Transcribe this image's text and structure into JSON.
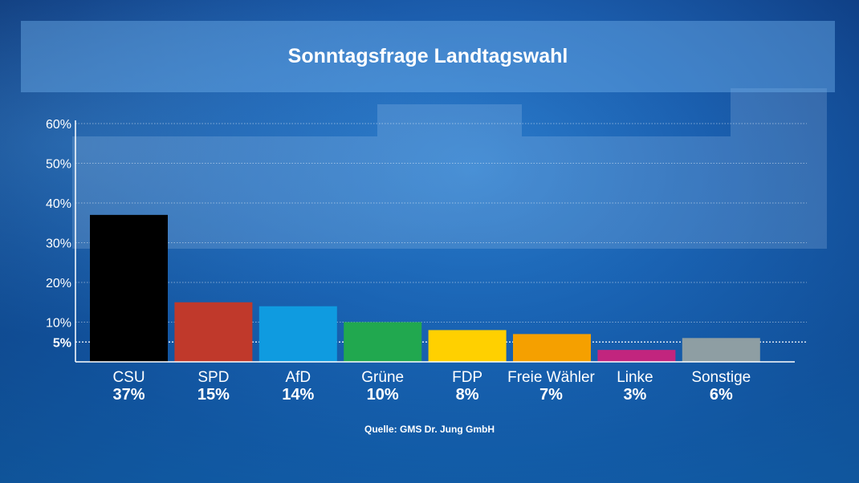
{
  "title": "Sonntagsfrage Landtagswahl",
  "source": "Quelle: GMS Dr. Jung GmbH",
  "chart_data": {
    "type": "bar",
    "title": "Sonntagsfrage Landtagswahl",
    "categories": [
      "CSU",
      "SPD",
      "AfD",
      "Grüne",
      "FDP",
      "Freie Wähler",
      "Linke",
      "Sonstige"
    ],
    "values": [
      37,
      15,
      14,
      10,
      8,
      7,
      3,
      6
    ],
    "value_labels": [
      "37%",
      "15%",
      "14%",
      "10%",
      "8%",
      "7%",
      "3%",
      "6%"
    ],
    "colors": [
      "#000000",
      "#c0392b",
      "#0f9be0",
      "#21a84f",
      "#ffd000",
      "#f5a000",
      "#c2257e",
      "#8e9ea3"
    ],
    "ylim": [
      0,
      60
    ],
    "yticks": [
      10,
      20,
      30,
      40,
      50,
      60
    ],
    "ytick_labels": [
      "10%",
      "20%",
      "30%",
      "40%",
      "50%",
      "60%"
    ],
    "threshold": 5,
    "threshold_label": "5%",
    "grid": true,
    "xlabel": "",
    "ylabel": ""
  }
}
